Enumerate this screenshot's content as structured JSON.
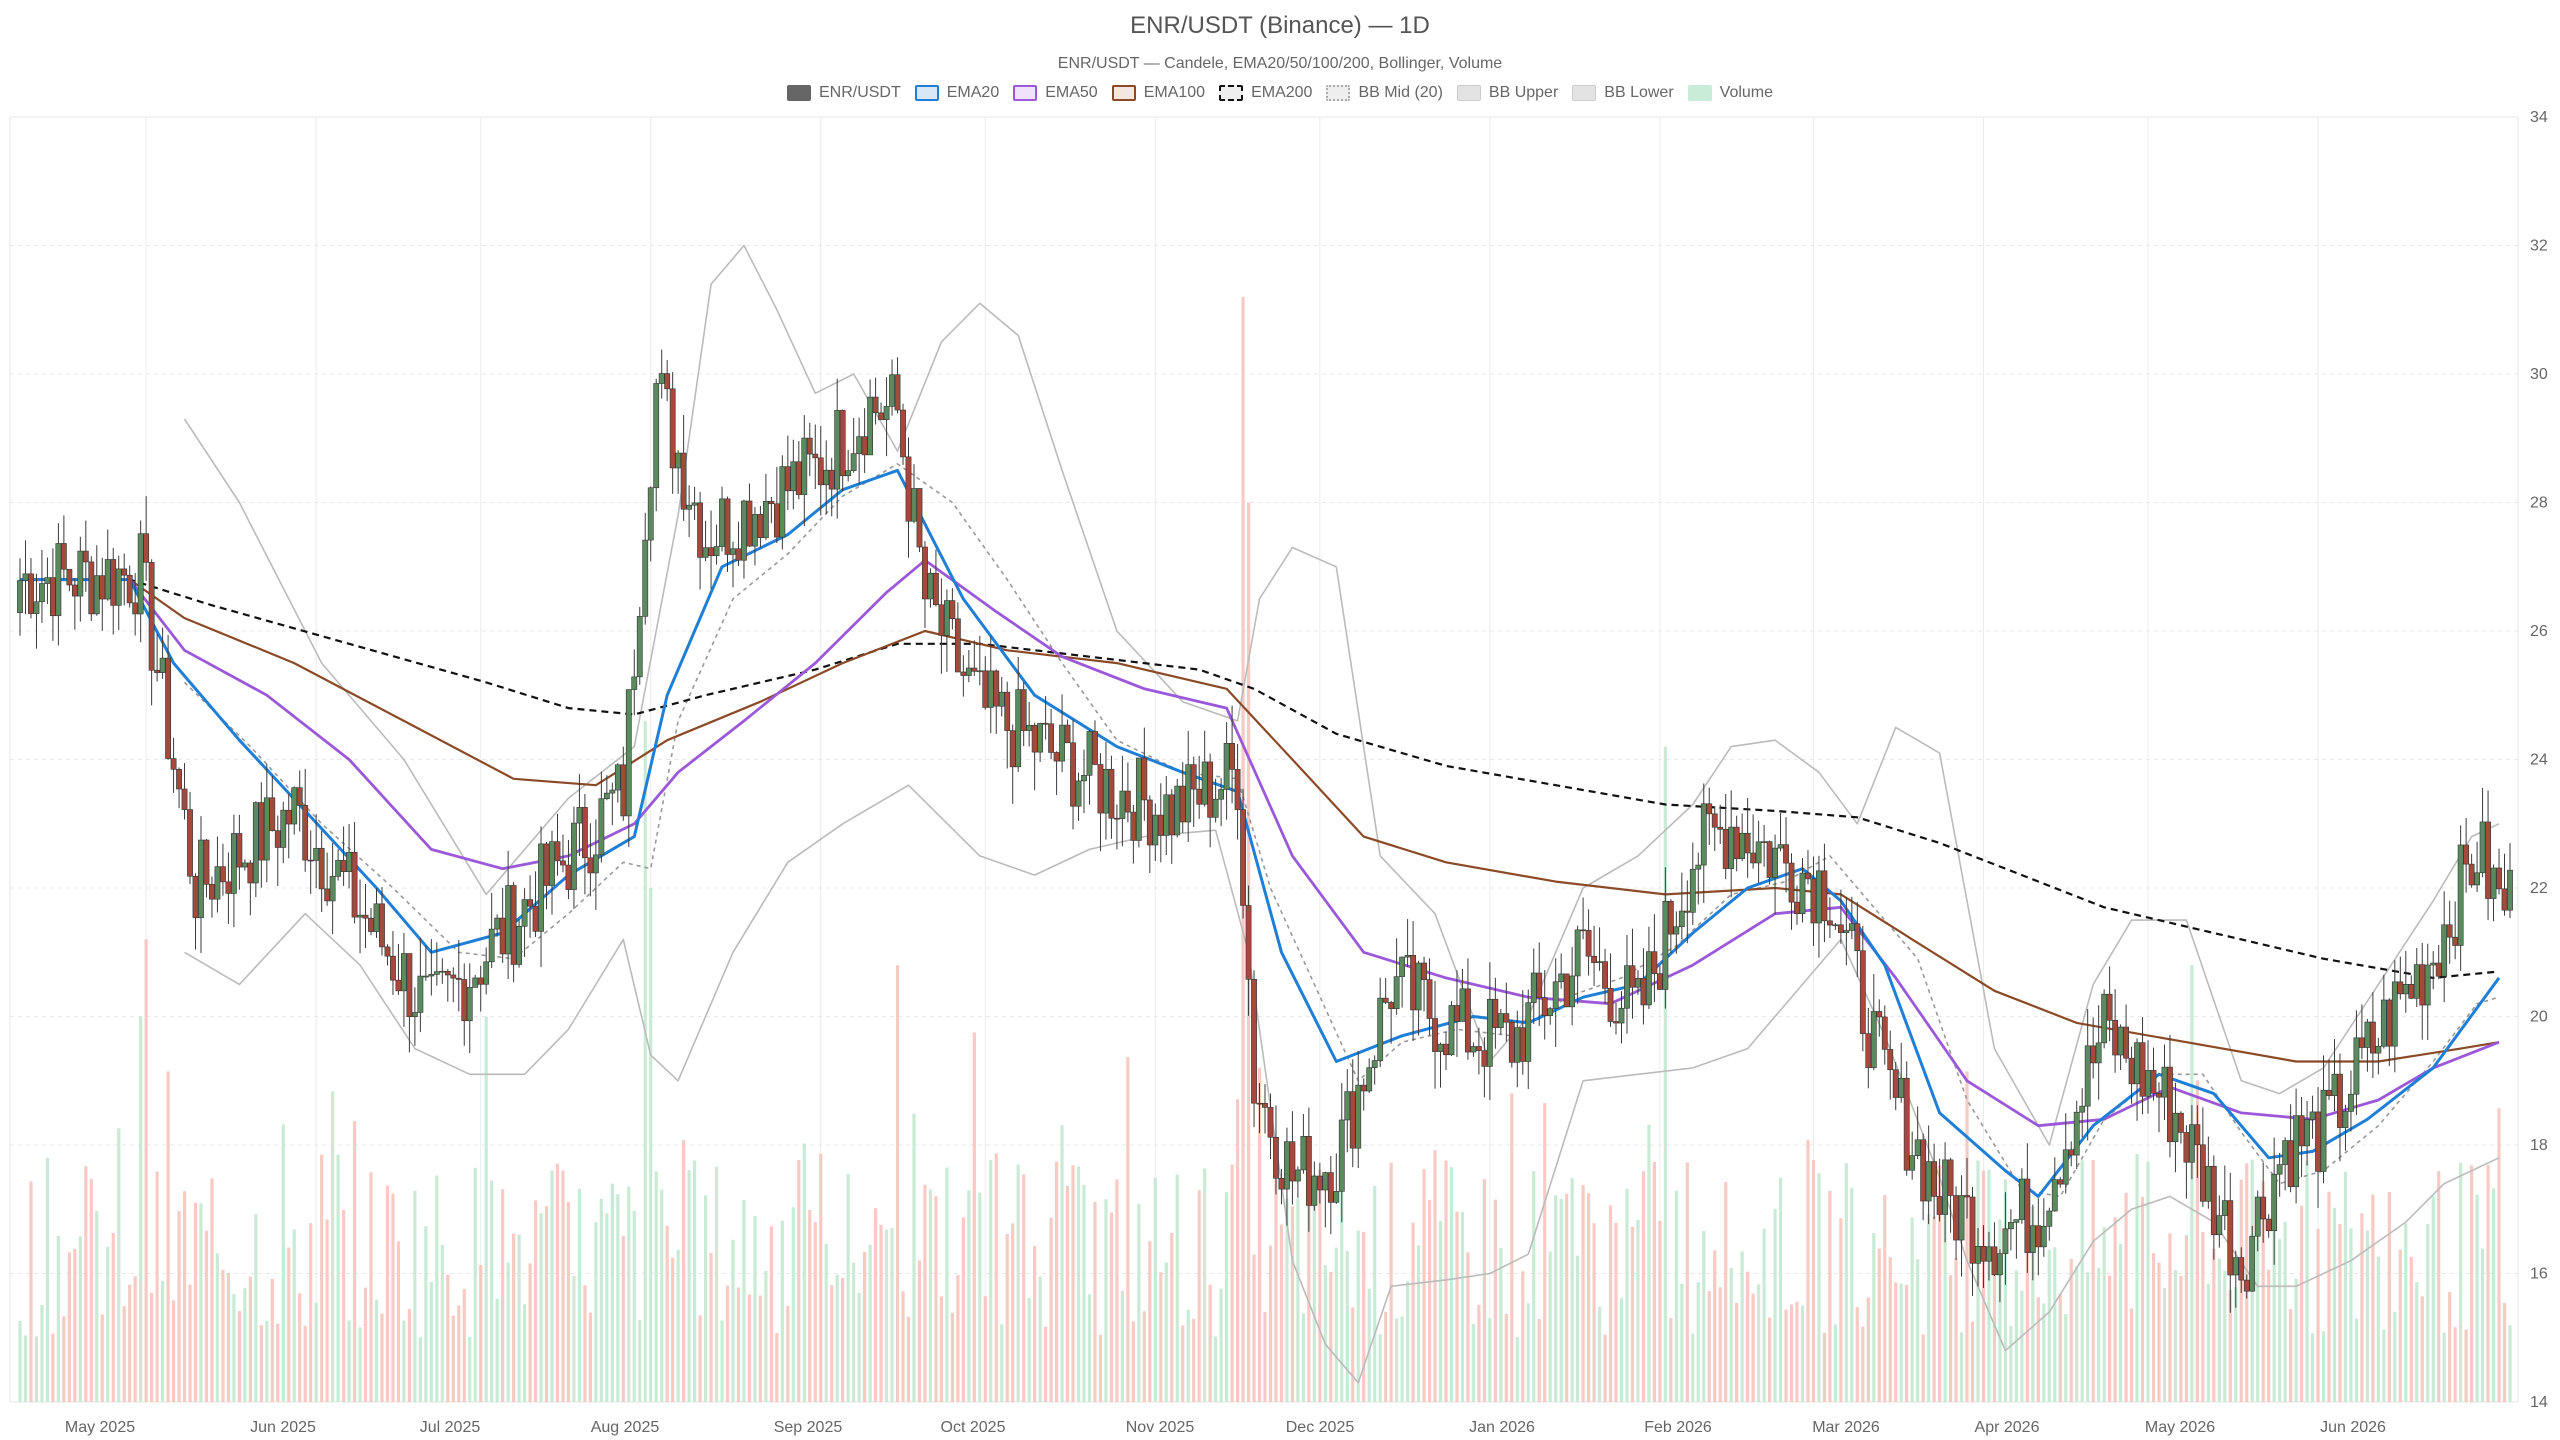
{
  "chart_data": {
    "type": "candlestick",
    "title": "ENR/USDT (Binance) — 1D",
    "subtitle": "ENR/USDT — Candele, EMA20/50/100/200, Bollinger, Volume",
    "legend": [
      {
        "label": "ENR/USDT",
        "key": "candles"
      },
      {
        "label": "EMA20",
        "key": "ema20"
      },
      {
        "label": "EMA50",
        "key": "ema50"
      },
      {
        "label": "EMA100",
        "key": "ema100"
      },
      {
        "label": "EMA200",
        "key": "ema200"
      },
      {
        "label": "BB Mid (20)",
        "key": "bbmid"
      },
      {
        "label": "BB Upper",
        "key": "bbupper"
      },
      {
        "label": "BB Lower",
        "key": "bblower"
      },
      {
        "label": "Volume",
        "key": "volume"
      }
    ],
    "x_ticks": [
      "May 2025",
      "Jun 2025",
      "Jul 2025",
      "Aug 2025",
      "Sep 2025",
      "Oct 2025",
      "Nov 2025",
      "Dec 2025",
      "Jan 2026",
      "Feb 2026",
      "Mar 2026",
      "Apr 2026",
      "May 2026",
      "Jun 2026"
    ],
    "y_ticks": [
      14,
      16,
      18,
      20,
      22,
      24,
      26,
      28,
      30,
      32,
      34
    ],
    "ylim": [
      14,
      34
    ],
    "y_axis_side": "right",
    "grid": true,
    "legend_position": "top-center",
    "colors": {
      "up": "#5a8a5e",
      "down": "#a34a3c",
      "ema20": "#1f7fd6",
      "ema50": "#9b59d9",
      "ema100": "#8b4a26",
      "ema200": "#111111",
      "bb": "#bbbbbb",
      "bbmid": "#999999",
      "vol_up": "#bfe8cf",
      "vol_down": "#f6c1b9"
    },
    "key_prices": [
      {
        "x": 0,
        "close": 26.8
      },
      {
        "x": 22,
        "close": 26.9
      },
      {
        "x": 32,
        "close": 22.0
      },
      {
        "x": 50,
        "close": 23.2
      },
      {
        "x": 75,
        "close": 20.0
      },
      {
        "x": 95,
        "close": 22.0
      },
      {
        "x": 110,
        "close": 23.5
      },
      {
        "x": 114,
        "close": 28.0
      },
      {
        "x": 116,
        "close": 29.8
      },
      {
        "x": 125,
        "close": 27.5
      },
      {
        "x": 145,
        "close": 28.5
      },
      {
        "x": 155,
        "close": 29.5
      },
      {
        "x": 160,
        "close": 29.4
      },
      {
        "x": 165,
        "close": 26.5
      },
      {
        "x": 175,
        "close": 24.8
      },
      {
        "x": 190,
        "close": 24.0
      },
      {
        "x": 200,
        "close": 23.5
      },
      {
        "x": 210,
        "close": 23.2
      },
      {
        "x": 222,
        "close": 23.8
      },
      {
        "x": 225,
        "close": 19.0
      },
      {
        "x": 232,
        "close": 17.5
      },
      {
        "x": 240,
        "close": 17.8
      },
      {
        "x": 250,
        "close": 20.5
      },
      {
        "x": 262,
        "close": 19.8
      },
      {
        "x": 272,
        "close": 19.6
      },
      {
        "x": 285,
        "close": 21.0
      },
      {
        "x": 295,
        "close": 20.0
      },
      {
        "x": 305,
        "close": 22.5
      },
      {
        "x": 312,
        "close": 23.0
      },
      {
        "x": 320,
        "close": 22.5
      },
      {
        "x": 330,
        "close": 22.0
      },
      {
        "x": 340,
        "close": 19.0
      },
      {
        "x": 350,
        "close": 17.2
      },
      {
        "x": 360,
        "close": 16.6
      },
      {
        "x": 368,
        "close": 17.0
      },
      {
        "x": 380,
        "close": 19.8
      },
      {
        "x": 393,
        "close": 18.5
      },
      {
        "x": 405,
        "close": 16.2
      },
      {
        "x": 413,
        "close": 18.0
      },
      {
        "x": 420,
        "close": 18.2
      },
      {
        "x": 432,
        "close": 20.0
      },
      {
        "x": 440,
        "close": 21.0
      },
      {
        "x": 448,
        "close": 22.6
      },
      {
        "x": 452,
        "close": 21.8
      }
    ],
    "ema20_path": [
      [
        0,
        26.8
      ],
      [
        20,
        26.8
      ],
      [
        28,
        25.5
      ],
      [
        40,
        24.3
      ],
      [
        52,
        23.2
      ],
      [
        65,
        22.0
      ],
      [
        75,
        21.0
      ],
      [
        88,
        21.3
      ],
      [
        100,
        22.2
      ],
      [
        112,
        22.8
      ],
      [
        118,
        25.0
      ],
      [
        128,
        27.0
      ],
      [
        140,
        27.5
      ],
      [
        150,
        28.2
      ],
      [
        160,
        28.5
      ],
      [
        172,
        26.5
      ],
      [
        185,
        25.0
      ],
      [
        200,
        24.2
      ],
      [
        212,
        23.8
      ],
      [
        222,
        23.5
      ],
      [
        230,
        21.0
      ],
      [
        240,
        19.3
      ],
      [
        252,
        19.7
      ],
      [
        265,
        20.0
      ],
      [
        275,
        19.9
      ],
      [
        285,
        20.3
      ],
      [
        295,
        20.5
      ],
      [
        305,
        21.3
      ],
      [
        315,
        22.0
      ],
      [
        325,
        22.3
      ],
      [
        332,
        21.8
      ],
      [
        340,
        20.8
      ],
      [
        350,
        18.5
      ],
      [
        362,
        17.6
      ],
      [
        368,
        17.2
      ],
      [
        378,
        18.3
      ],
      [
        390,
        19.1
      ],
      [
        400,
        18.8
      ],
      [
        410,
        17.8
      ],
      [
        418,
        17.9
      ],
      [
        428,
        18.4
      ],
      [
        440,
        19.2
      ],
      [
        452,
        20.6
      ]
    ],
    "ema50_path": [
      [
        0,
        26.8
      ],
      [
        20,
        26.8
      ],
      [
        30,
        25.7
      ],
      [
        45,
        25.0
      ],
      [
        60,
        24.0
      ],
      [
        75,
        22.6
      ],
      [
        88,
        22.3
      ],
      [
        100,
        22.5
      ],
      [
        112,
        23.0
      ],
      [
        120,
        23.8
      ],
      [
        132,
        24.6
      ],
      [
        145,
        25.5
      ],
      [
        158,
        26.6
      ],
      [
        165,
        27.1
      ],
      [
        178,
        26.3
      ],
      [
        190,
        25.6
      ],
      [
        205,
        25.1
      ],
      [
        220,
        24.8
      ],
      [
        232,
        22.5
      ],
      [
        245,
        21.0
      ],
      [
        260,
        20.6
      ],
      [
        275,
        20.3
      ],
      [
        290,
        20.2
      ],
      [
        305,
        20.8
      ],
      [
        320,
        21.6
      ],
      [
        332,
        21.7
      ],
      [
        342,
        20.6
      ],
      [
        355,
        19.0
      ],
      [
        368,
        18.3
      ],
      [
        380,
        18.4
      ],
      [
        392,
        18.9
      ],
      [
        405,
        18.5
      ],
      [
        418,
        18.4
      ],
      [
        430,
        18.7
      ],
      [
        440,
        19.2
      ],
      [
        452,
        19.6
      ]
    ],
    "ema100_path": [
      [
        0,
        26.8
      ],
      [
        20,
        26.8
      ],
      [
        30,
        26.2
      ],
      [
        50,
        25.5
      ],
      [
        70,
        24.6
      ],
      [
        90,
        23.7
      ],
      [
        105,
        23.6
      ],
      [
        118,
        24.3
      ],
      [
        135,
        24.9
      ],
      [
        150,
        25.5
      ],
      [
        165,
        26.0
      ],
      [
        180,
        25.7
      ],
      [
        200,
        25.5
      ],
      [
        220,
        25.1
      ],
      [
        232,
        24.0
      ],
      [
        245,
        22.8
      ],
      [
        260,
        22.4
      ],
      [
        280,
        22.1
      ],
      [
        300,
        21.9
      ],
      [
        320,
        22.0
      ],
      [
        332,
        21.9
      ],
      [
        345,
        21.2
      ],
      [
        360,
        20.4
      ],
      [
        375,
        19.9
      ],
      [
        395,
        19.6
      ],
      [
        415,
        19.3
      ],
      [
        430,
        19.3
      ],
      [
        445,
        19.5
      ],
      [
        452,
        19.6
      ]
    ],
    "ema200_path": [
      [
        0,
        26.8
      ],
      [
        20,
        26.8
      ],
      [
        35,
        26.4
      ],
      [
        60,
        25.8
      ],
      [
        85,
        25.2
      ],
      [
        100,
        24.8
      ],
      [
        112,
        24.7
      ],
      [
        125,
        25.0
      ],
      [
        145,
        25.4
      ],
      [
        160,
        25.8
      ],
      [
        175,
        25.8
      ],
      [
        195,
        25.6
      ],
      [
        215,
        25.4
      ],
      [
        225,
        25.1
      ],
      [
        240,
        24.4
      ],
      [
        260,
        23.9
      ],
      [
        280,
        23.6
      ],
      [
        300,
        23.3
      ],
      [
        320,
        23.2
      ],
      [
        335,
        23.1
      ],
      [
        350,
        22.7
      ],
      [
        365,
        22.2
      ],
      [
        380,
        21.7
      ],
      [
        400,
        21.3
      ],
      [
        420,
        20.9
      ],
      [
        440,
        20.6
      ],
      [
        452,
        20.7
      ]
    ],
    "bb_upper_path": [
      [
        30,
        29.3
      ],
      [
        40,
        28.0
      ],
      [
        55,
        25.5
      ],
      [
        70,
        24.0
      ],
      [
        85,
        21.9
      ],
      [
        100,
        23.4
      ],
      [
        112,
        24.2
      ],
      [
        120,
        27.8
      ],
      [
        126,
        31.4
      ],
      [
        132,
        32.0
      ],
      [
        138,
        31.0
      ],
      [
        145,
        29.7
      ],
      [
        152,
        30.0
      ],
      [
        160,
        28.8
      ],
      [
        168,
        30.5
      ],
      [
        175,
        31.1
      ],
      [
        182,
        30.6
      ],
      [
        190,
        28.5
      ],
      [
        200,
        26.0
      ],
      [
        212,
        24.9
      ],
      [
        222,
        24.6
      ],
      [
        226,
        26.5
      ],
      [
        232,
        27.3
      ],
      [
        240,
        27.0
      ],
      [
        248,
        22.5
      ],
      [
        258,
        21.6
      ],
      [
        268,
        19.3
      ],
      [
        275,
        20.0
      ],
      [
        285,
        22.0
      ],
      [
        295,
        22.5
      ],
      [
        305,
        23.3
      ],
      [
        312,
        24.2
      ],
      [
        320,
        24.3
      ],
      [
        328,
        23.8
      ],
      [
        335,
        23.0
      ],
      [
        342,
        24.5
      ],
      [
        350,
        24.1
      ],
      [
        360,
        19.5
      ],
      [
        370,
        18.0
      ],
      [
        378,
        20.5
      ],
      [
        385,
        21.5
      ],
      [
        395,
        21.5
      ],
      [
        405,
        19.0
      ],
      [
        412,
        18.8
      ],
      [
        420,
        19.2
      ],
      [
        430,
        20.5
      ],
      [
        440,
        21.8
      ],
      [
        447,
        22.8
      ],
      [
        452,
        23.0
      ]
    ],
    "bb_lower_path": [
      [
        30,
        21.0
      ],
      [
        40,
        20.5
      ],
      [
        52,
        21.6
      ],
      [
        62,
        20.8
      ],
      [
        72,
        19.5
      ],
      [
        82,
        19.1
      ],
      [
        92,
        19.1
      ],
      [
        100,
        19.8
      ],
      [
        110,
        21.2
      ],
      [
        115,
        19.4
      ],
      [
        120,
        19.0
      ],
      [
        130,
        21.0
      ],
      [
        140,
        22.4
      ],
      [
        150,
        23.0
      ],
      [
        162,
        23.6
      ],
      [
        175,
        22.5
      ],
      [
        185,
        22.2
      ],
      [
        195,
        22.6
      ],
      [
        205,
        22.8
      ],
      [
        218,
        22.9
      ],
      [
        224,
        21.0
      ],
      [
        232,
        16.2
      ],
      [
        238,
        14.9
      ],
      [
        244,
        14.3
      ],
      [
        250,
        15.8
      ],
      [
        260,
        15.9
      ],
      [
        268,
        16.0
      ],
      [
        275,
        16.3
      ],
      [
        285,
        19.0
      ],
      [
        295,
        19.1
      ],
      [
        305,
        19.2
      ],
      [
        315,
        19.5
      ],
      [
        325,
        20.5
      ],
      [
        332,
        21.2
      ],
      [
        340,
        19.7
      ],
      [
        350,
        17.5
      ],
      [
        355,
        16.2
      ],
      [
        362,
        14.8
      ],
      [
        370,
        15.4
      ],
      [
        378,
        16.5
      ],
      [
        385,
        17.0
      ],
      [
        392,
        17.2
      ],
      [
        400,
        16.8
      ],
      [
        408,
        15.8
      ],
      [
        415,
        15.8
      ],
      [
        425,
        16.2
      ],
      [
        435,
        16.8
      ],
      [
        442,
        17.4
      ],
      [
        452,
        17.8
      ]
    ],
    "bb_mid_path": [
      [
        30,
        25.2
      ],
      [
        42,
        24.2
      ],
      [
        55,
        23.0
      ],
      [
        68,
        22.0
      ],
      [
        80,
        21.0
      ],
      [
        90,
        20.9
      ],
      [
        100,
        21.6
      ],
      [
        110,
        22.4
      ],
      [
        115,
        22.3
      ],
      [
        120,
        24.6
      ],
      [
        130,
        26.5
      ],
      [
        140,
        27.2
      ],
      [
        150,
        28.1
      ],
      [
        160,
        28.6
      ],
      [
        170,
        28.0
      ],
      [
        180,
        26.8
      ],
      [
        190,
        25.5
      ],
      [
        200,
        24.3
      ],
      [
        212,
        23.8
      ],
      [
        222,
        23.7
      ],
      [
        228,
        22.0
      ],
      [
        236,
        20.5
      ],
      [
        244,
        19.0
      ],
      [
        252,
        19.6
      ],
      [
        262,
        19.8
      ],
      [
        272,
        19.7
      ],
      [
        282,
        20.3
      ],
      [
        292,
        20.6
      ],
      [
        302,
        21.1
      ],
      [
        312,
        21.9
      ],
      [
        322,
        22.1
      ],
      [
        330,
        22.5
      ],
      [
        338,
        21.7
      ],
      [
        346,
        20.9
      ],
      [
        355,
        18.7
      ],
      [
        365,
        17.3
      ],
      [
        372,
        17.2
      ],
      [
        380,
        18.4
      ],
      [
        390,
        19.1
      ],
      [
        398,
        19.1
      ],
      [
        405,
        18.2
      ],
      [
        412,
        17.4
      ],
      [
        420,
        17.6
      ],
      [
        430,
        18.3
      ],
      [
        440,
        19.3
      ],
      [
        448,
        20.2
      ],
      [
        452,
        20.3
      ]
    ],
    "volume_relative_peaks": [
      {
        "x": 22,
        "v": 0.3
      },
      {
        "x": 23,
        "v": 0.36
      },
      {
        "x": 85,
        "v": 0.3
      },
      {
        "x": 114,
        "v": 0.53
      },
      {
        "x": 115,
        "v": 0.4
      },
      {
        "x": 160,
        "v": 0.34
      },
      {
        "x": 223,
        "v": 0.86
      },
      {
        "x": 224,
        "v": 0.7
      },
      {
        "x": 300,
        "v": 0.51
      },
      {
        "x": 396,
        "v": 0.34
      }
    ]
  }
}
